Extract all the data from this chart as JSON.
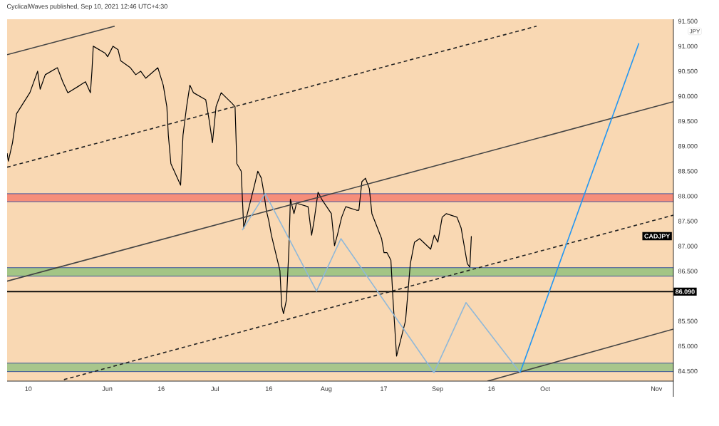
{
  "chart_data": {
    "type": "line",
    "title": "CyclicalWaves published, Sep 10, 2021 12:46 UTC+4:30",
    "ylabel": "JPY",
    "xlim": [
      "2021-05-04T02:00",
      "2021-11-05T17:00"
    ],
    "ylim": [
      84.3,
      91.54
    ],
    "xticks": [
      {
        "value": "2021-05-10",
        "label": "10"
      },
      {
        "value": "2021-06-01",
        "label": "Jun"
      },
      {
        "value": "2021-06-16",
        "label": "16"
      },
      {
        "value": "2021-07-01",
        "label": "Jul"
      },
      {
        "value": "2021-07-16",
        "label": "16"
      },
      {
        "value": "2021-08-01",
        "label": "Aug"
      },
      {
        "value": "2021-08-17",
        "label": "17"
      },
      {
        "value": "2021-09-01",
        "label": "Sep"
      },
      {
        "value": "2021-09-16",
        "label": "16"
      },
      {
        "value": "2021-10-01",
        "label": "Oct"
      },
      {
        "value": "2021-11-01",
        "label": "Nov"
      }
    ],
    "yticks": [
      {
        "value": 84.5,
        "label": "84.500"
      },
      {
        "value": 85,
        "label": "85.000"
      },
      {
        "value": 85.5,
        "label": "85.500"
      },
      {
        "value": 86.5,
        "label": "86.500"
      },
      {
        "value": 87,
        "label": "87.000"
      },
      {
        "value": 87.5,
        "label": "87.500"
      },
      {
        "value": 88,
        "label": "88.000"
      },
      {
        "value": 88.5,
        "label": "88.500"
      },
      {
        "value": 89,
        "label": "89.000"
      },
      {
        "value": 89.5,
        "label": "89.500"
      },
      {
        "value": 90,
        "label": "90.000"
      },
      {
        "value": 90.5,
        "label": "90.500"
      },
      {
        "value": 91,
        "label": "91.000"
      },
      {
        "value": 91.5,
        "label": "91.500"
      }
    ],
    "series": [
      {
        "name": "CADJPY",
        "color": "#000000",
        "line_style": "solid",
        "x": [
          "2021-05-04T02:00",
          "2021-05-04T10:00",
          "2021-05-05T14:00",
          "2021-05-06T17:00",
          "2021-05-10T10:00",
          "2021-05-12T14:00",
          "2021-05-13T07:00",
          "2021-05-14T17:00",
          "2021-05-18T02:00",
          "2021-05-19T14:00",
          "2021-05-21T00:00",
          "2021-05-24T10:00",
          "2021-05-25T22:00",
          "2021-05-27T07:00",
          "2021-05-27T17:00",
          "2021-05-28T02:00",
          "2021-05-31T10:00",
          "2021-06-01T02:00",
          "2021-06-02T14:00",
          "2021-06-04T00:00",
          "2021-06-04T17:00",
          "2021-06-07T10:00",
          "2021-06-08T22:00",
          "2021-06-10T07:00",
          "2021-06-11T17:00",
          "2021-06-15T02:00",
          "2021-06-16T14:00",
          "2021-06-17T14:00",
          "2021-06-18T00:00",
          "2021-06-18T17:00",
          "2021-06-21T10:00",
          "2021-06-22T02:00",
          "2021-06-23T02:00",
          "2021-06-24T00:00",
          "2021-06-25T00:00",
          "2021-06-28T10:00",
          "2021-06-29T10:00",
          "2021-06-30T07:00",
          "2021-07-01T07:00",
          "2021-07-02T17:00",
          "2021-07-05T17:00",
          "2021-07-06T14:00",
          "2021-07-07T02:00",
          "2021-07-08T07:00",
          "2021-07-09T00:00",
          "2021-07-12T00:00",
          "2021-07-12T22:00",
          "2021-07-13T22:00",
          "2021-07-14T14:00",
          "2021-07-15T07:00",
          "2021-07-16T00:00",
          "2021-07-16T17:00",
          "2021-07-19T02:00",
          "2021-07-19T14:00",
          "2021-07-20T02:00",
          "2021-07-20T22:00",
          "2021-07-21T14:00",
          "2021-07-22T00:00",
          "2021-07-23T00:00",
          "2021-07-23T17:00",
          "2021-07-26T22:00",
          "2021-07-27T22:00",
          "2021-07-28T14:00",
          "2021-07-29T17:00",
          "2021-07-30T17:00",
          "2021-08-02T10:00",
          "2021-08-03T07:00",
          "2021-08-04T02:00",
          "2021-08-05T07:00",
          "2021-08-06T10:00",
          "2021-08-09T10:00",
          "2021-08-10T02:00",
          "2021-08-10T22:00",
          "2021-08-11T22:00",
          "2021-08-13T00:00",
          "2021-08-13T17:00",
          "2021-08-16T10:00",
          "2021-08-17T02:00",
          "2021-08-17T22:00",
          "2021-08-19T00:00",
          "2021-08-19T14:00",
          "2021-08-20T02:00",
          "2021-08-20T14:00",
          "2021-08-23T02:00",
          "2021-08-23T22:00",
          "2021-08-24T10:00",
          "2021-08-25T14:00",
          "2021-08-27T00:00",
          "2021-08-30T02:00",
          "2021-08-31T02:00",
          "2021-09-01T02:00",
          "2021-09-02T07:00",
          "2021-09-03T10:00",
          "2021-09-06T10:00",
          "2021-09-07T14:00",
          "2021-09-08T14:00",
          "2021-09-09T07:00",
          "2021-09-10T00:00",
          "2021-09-10T10:00"
        ],
        "values": [
          88.86,
          88.7,
          89.07,
          89.65,
          90.07,
          90.5,
          90.14,
          90.43,
          90.57,
          90.29,
          90.07,
          90.22,
          90.29,
          90.07,
          90.5,
          91.0,
          90.86,
          90.79,
          91.0,
          90.93,
          90.71,
          90.57,
          90.43,
          90.5,
          90.36,
          90.57,
          90.22,
          89.79,
          89.22,
          88.65,
          88.22,
          89.22,
          89.79,
          90.22,
          90.07,
          89.93,
          89.5,
          89.07,
          89.79,
          90.07,
          89.86,
          89.79,
          88.65,
          88.5,
          87.36,
          88.22,
          88.5,
          88.36,
          88.08,
          87.72,
          87.5,
          87.22,
          86.51,
          85.8,
          85.65,
          85.93,
          86.94,
          87.94,
          87.65,
          87.86,
          87.79,
          87.22,
          87.5,
          88.08,
          87.94,
          87.65,
          87.01,
          87.22,
          87.58,
          87.79,
          87.72,
          87.72,
          88.29,
          88.36,
          88.15,
          87.65,
          87.15,
          86.87,
          86.87,
          86.72,
          85.94,
          85.37,
          84.8,
          85.51,
          86.22,
          86.65,
          87.08,
          87.15,
          86.94,
          87.22,
          87.08,
          87.58,
          87.65,
          87.58,
          87.36,
          86.94,
          86.65,
          86.58,
          87.2
        ]
      },
      {
        "color": "#444444",
        "line_style": "solid",
        "x": [
          "2021-05-04T02:00",
          "2021-06-03T01:00"
        ],
        "values": [
          90.83,
          91.4
        ]
      },
      {
        "color": "#222222",
        "line_style": "dashed",
        "x": [
          "2021-05-04T02:00",
          "2021-09-28T14:00"
        ],
        "values": [
          88.58,
          91.4
        ]
      },
      {
        "color": "#444444",
        "line_style": "solid",
        "x": [
          "2021-05-04T02:00",
          "2021-11-05T17:00"
        ],
        "values": [
          86.3,
          89.89
        ]
      },
      {
        "color": "#222222",
        "line_style": "dashed",
        "x": [
          "2021-05-19T22:00",
          "2021-11-05T17:00"
        ],
        "values": [
          84.33,
          87.62
        ]
      },
      {
        "color": "#444444",
        "line_style": "solid",
        "x": [
          "2021-09-14T22:00",
          "2021-11-05T17:00"
        ],
        "values": [
          84.3,
          85.34
        ]
      },
      {
        "color": "#8fb8d9",
        "line_style": "solid",
        "x": [
          "2021-07-08T14:00",
          "2021-07-15T00:00",
          "2021-07-29T07:00",
          "2021-08-05T02:00",
          "2021-08-31T00:00",
          "2021-09-08T22:00",
          "2021-09-24T00:00"
        ],
        "values": [
          87.32,
          88.05,
          86.1,
          87.15,
          84.47,
          85.87,
          84.47
        ]
      },
      {
        "color": "#2196f3",
        "line_style": "solid",
        "x": [
          "2021-09-24T00:00",
          "2021-10-27T02:00"
        ],
        "values": [
          84.47,
          91.06
        ]
      }
    ],
    "bands": [
      {
        "axis": "y",
        "from": 87.89,
        "to": 88.05,
        "color": "#f68e7a"
      },
      {
        "axis": "y",
        "from": 86.4,
        "to": 86.57,
        "color": "#a3c585"
      },
      {
        "axis": "y",
        "from": 84.49,
        "to": 84.66,
        "color": "#a8c68c"
      }
    ],
    "ref_lines": [
      {
        "axis": "y",
        "value": 86.09,
        "label": "86.090",
        "color": "#000000"
      }
    ]
  }
}
